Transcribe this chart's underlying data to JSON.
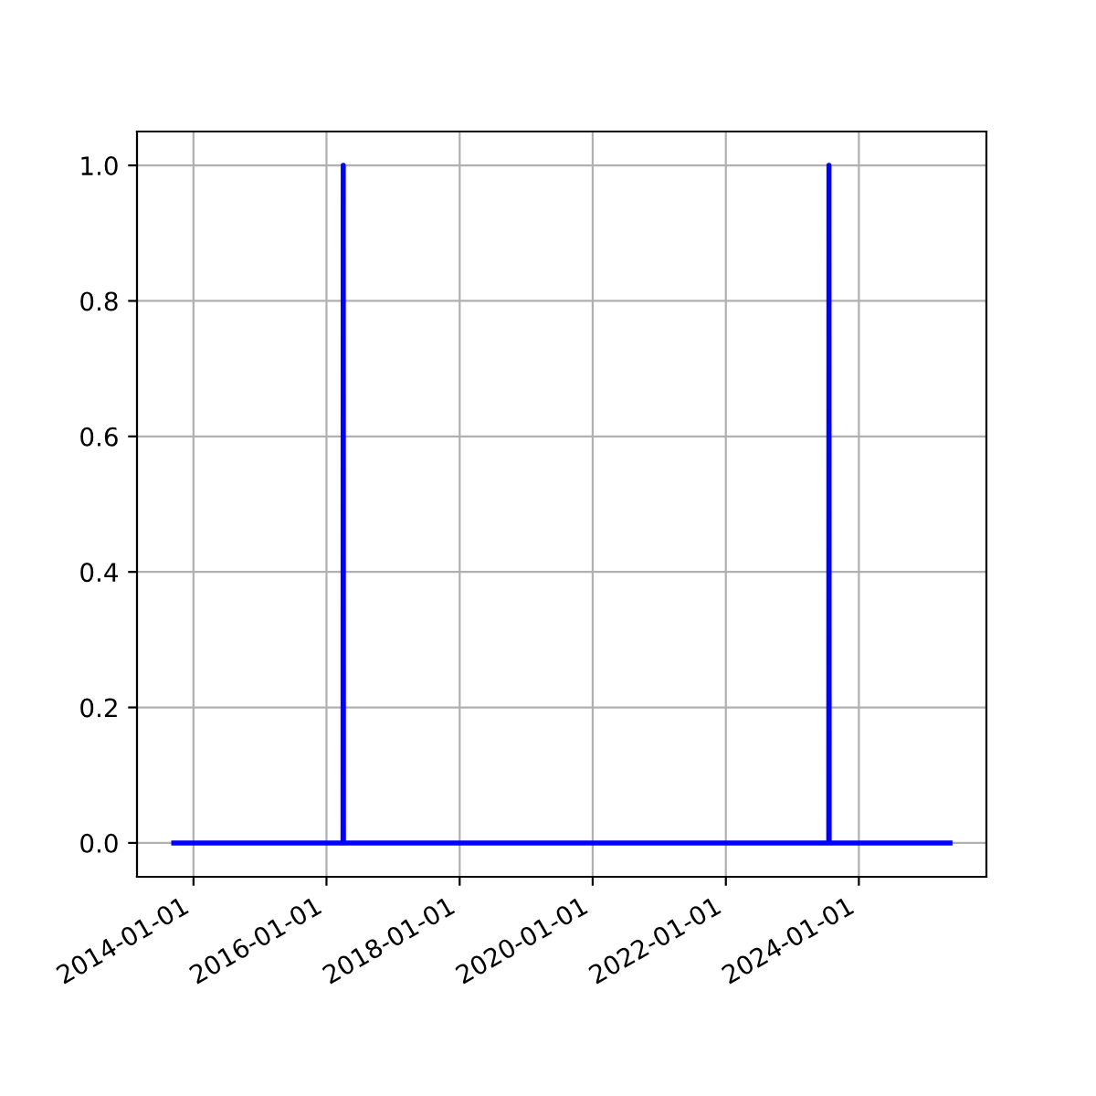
{
  "chart_data": {
    "type": "line",
    "x": [
      "2013-09-15",
      "2016-04-01",
      "2016-04-02",
      "2016-04-03",
      "2023-07-20",
      "2023-07-21",
      "2023-07-22",
      "2025-05-15"
    ],
    "series": [
      {
        "color": "#0000ff",
        "values": [
          0,
          0,
          1,
          0,
          0,
          1,
          0,
          0
        ]
      }
    ],
    "xlim": [
      "2013-02-25",
      "2025-12-01"
    ],
    "xticks": [
      {
        "value": "2014-01-01",
        "label": "2014-01-01"
      },
      {
        "value": "2016-01-01",
        "label": "2016-01-01"
      },
      {
        "value": "2018-01-01",
        "label": "2018-01-01"
      },
      {
        "value": "2020-01-01",
        "label": "2020-01-01"
      },
      {
        "value": "2022-01-01",
        "label": "2022-01-01"
      },
      {
        "value": "2024-01-01",
        "label": "2024-01-01"
      }
    ],
    "ylim": [
      -0.05,
      1.05
    ],
    "yticks": [
      {
        "value": 0,
        "label": "0.0"
      },
      {
        "value": 0.2,
        "label": "0.2"
      },
      {
        "value": 0.4,
        "label": "0.4"
      },
      {
        "value": 0.6,
        "label": "0.6"
      },
      {
        "value": 0.8,
        "label": "0.8"
      },
      {
        "value": 1,
        "label": "1.0"
      }
    ],
    "grid": true
  }
}
